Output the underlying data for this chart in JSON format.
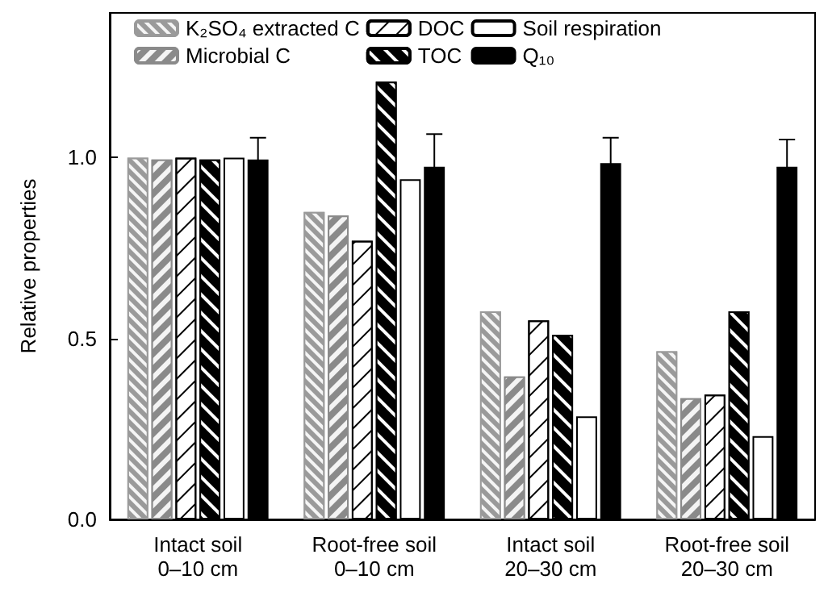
{
  "chart_data": {
    "type": "bar",
    "ylabel": "Relative properties",
    "categories": [
      "Intact soil\n0–10 cm",
      "Root-free soil\n0–10 cm",
      "Intact soil\n20–30 cm",
      "Root-free soil\n20–30 cm"
    ],
    "ylim": [
      0,
      1.4
    ],
    "yticks": [
      {
        "value": 0,
        "label": "0.0"
      },
      {
        "value": 0.5,
        "label": "0.5"
      },
      {
        "value": 1,
        "label": "1.0"
      }
    ],
    "grid": false,
    "legend": "top left",
    "series": [
      {
        "name": "K₂SO₄ extracted C",
        "color": "#9a9a9a",
        "values": [
          1.0,
          0.85,
          0.575,
          0.465
        ]
      },
      {
        "name": "Microbial C",
        "color": "#8a8a8a",
        "values": [
          0.995,
          0.84,
          0.395,
          0.335
        ]
      },
      {
        "name": "DOC",
        "color": "#ffffff",
        "values": [
          1.0,
          0.77,
          0.55,
          0.345
        ]
      },
      {
        "name": "TOC",
        "color": "#000000",
        "values": [
          0.995,
          1.21,
          0.51,
          0.575
        ]
      },
      {
        "name": "Soil respiration",
        "color": "#ffffff",
        "values": [
          1.0,
          0.94,
          0.285,
          0.23
        ]
      },
      {
        "name": "Q₁₀",
        "color": "#000000",
        "values": [
          0.995,
          0.975,
          0.985,
          0.975
        ],
        "errors": [
          0.06,
          0.09,
          0.07,
          0.075
        ]
      }
    ]
  }
}
